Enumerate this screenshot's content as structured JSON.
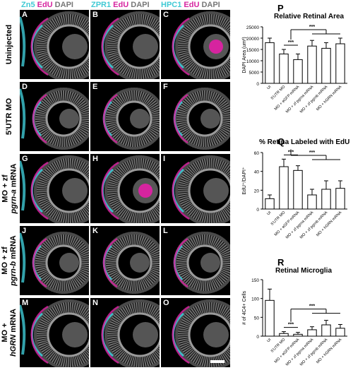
{
  "column_headers": [
    {
      "parts": [
        {
          "text": "Zn5",
          "color": "cyan"
        },
        {
          "text": " EdU",
          "color": "magenta"
        },
        {
          "text": " DAPI",
          "color": "grey"
        }
      ]
    },
    {
      "parts": [
        {
          "text": "ZPR1",
          "color": "cyan"
        },
        {
          "text": " EdU",
          "color": "magenta"
        },
        {
          "text": " DAPI",
          "color": "grey"
        }
      ]
    },
    {
      "parts": [
        {
          "text": "HPC1",
          "color": "cyan"
        },
        {
          "text": " EdU",
          "color": "magenta"
        },
        {
          "text": " DAPI",
          "color": "grey"
        }
      ]
    }
  ],
  "row_labels": [
    {
      "line1": "Uninjected",
      "line2": "",
      "italic": ""
    },
    {
      "line1": "5'UTR MO",
      "line2": "",
      "italic": ""
    },
    {
      "line1": "MO + zf",
      "line2": " mRNA",
      "italic": "pgrn-a"
    },
    {
      "line1": "MO + zf",
      "line2": " mRNA",
      "italic": "pgrn-b"
    },
    {
      "line1": "MO +",
      "line2": " mRNA",
      "italic": "hGRN"
    }
  ],
  "panel_letters": [
    "A",
    "B",
    "C",
    "D",
    "E",
    "F",
    "G",
    "H",
    "I",
    "J",
    "K",
    "L",
    "M",
    "N",
    "O"
  ],
  "colors": {
    "cyan": "#3fc9d4",
    "magenta": "#d6249f",
    "grey": "#9a9a9a"
  },
  "charts": [
    {
      "letter": "P",
      "title": "Relative Retinal Area",
      "chart_data": {
        "type": "bar",
        "ylabel": "DAPI Area (um²)",
        "categories": [
          "UI",
          "5'UTR MO",
          "MO + eGFP mRNA",
          "MO + zf pgrna mRNA",
          "MO + zf pgrnb mRNA",
          "MO + hGRN mRNA"
        ],
        "values": [
          18000,
          13000,
          10500,
          16500,
          15500,
          17500
        ],
        "errors": [
          2000,
          2000,
          2500,
          2500,
          2500,
          2500
        ],
        "ylim": [
          0,
          25000
        ],
        "yticks": [
          "0",
          "5000",
          "10000",
          "15000",
          "20000",
          "25000"
        ],
        "significance": [
          "***",
          "***"
        ]
      }
    },
    {
      "letter": "Q",
      "title": "% Retina Labeled with EdU",
      "chart_data": {
        "type": "bar",
        "ylabel": "EdU⁺/DAPI⁺",
        "categories": [
          "UI",
          "5'UTR MO",
          "MO + eGFP mRNA",
          "MO + zf pgrna mRNA",
          "MO + zf pgrnb mRNA",
          "MO + hGRN mRNA"
        ],
        "values": [
          11,
          45,
          41,
          15,
          21,
          22
        ],
        "errors": [
          4,
          8,
          5,
          6,
          9,
          8
        ],
        "ylim": [
          0,
          60
        ],
        "yticks": [
          "0",
          "20",
          "40",
          "60"
        ],
        "significance": [
          "***",
          "***"
        ]
      }
    },
    {
      "letter": "R",
      "title": "Retinal Microglia",
      "chart_data": {
        "type": "bar",
        "ylabel": "# of 4C4+ Cells",
        "categories": [
          "UI",
          "5'UTR MO",
          "MO + eGFP mRNA",
          "MO + zf pgrna mRNA",
          "MO + zf pgrnb mRNA",
          "MO + hGRN mRNA"
        ],
        "values": [
          95,
          7,
          5,
          17,
          30,
          21
        ],
        "errors": [
          30,
          5,
          5,
          8,
          12,
          10
        ],
        "ylim": [
          0,
          150
        ],
        "yticks": [
          "0",
          "50",
          "100",
          "150"
        ],
        "significance": [
          "***",
          "***"
        ]
      }
    }
  ]
}
